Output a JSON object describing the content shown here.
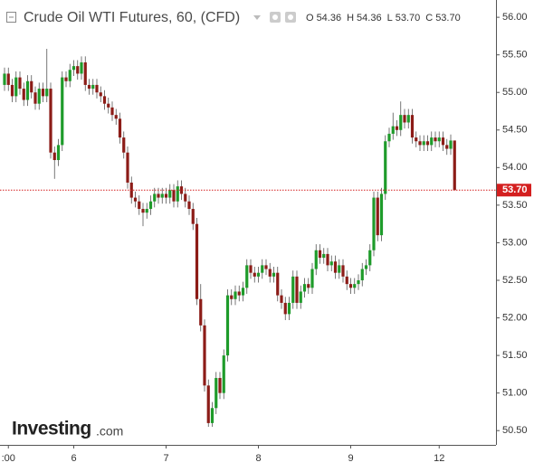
{
  "chart_data": {
    "type": "candlestick",
    "title": "Crude Oil WTI Futures, 60, (CFD)",
    "ohlc": [
      {
        "label": "O",
        "value": "54.36"
      },
      {
        "label": "H",
        "value": "54.36"
      },
      {
        "label": "L",
        "value": "53.70"
      },
      {
        "label": "C",
        "value": "53.70"
      }
    ],
    "watermark": [
      "Investing",
      ".com"
    ],
    "last_price": {
      "value": 53.7,
      "label": "53.70"
    },
    "up_color": "#1e9b2a",
    "down_color": "#8c1c17",
    "price_line_color": "#d41f1f",
    "categories": [
      null,
      ":00",
      null,
      null,
      null,
      null,
      null,
      null,
      null,
      null,
      null,
      null,
      null,
      null,
      null,
      null,
      null,
      null,
      "6",
      null,
      null,
      null,
      null,
      null,
      null,
      null,
      null,
      null,
      null,
      null,
      null,
      null,
      null,
      null,
      null,
      null,
      null,
      null,
      null,
      null,
      null,
      null,
      "7",
      null,
      null,
      null,
      null,
      null,
      null,
      null,
      null,
      null,
      null,
      null,
      null,
      null,
      null,
      null,
      null,
      null,
      null,
      null,
      null,
      null,
      null,
      null,
      "8",
      null,
      null,
      null,
      null,
      null,
      null,
      null,
      null,
      null,
      null,
      null,
      null,
      null,
      null,
      null,
      null,
      null,
      null,
      null,
      null,
      null,
      null,
      null,
      "9",
      null,
      null,
      null,
      null,
      null,
      null,
      null,
      null,
      null,
      null,
      null,
      null,
      null,
      null,
      null,
      null,
      null,
      null,
      null,
      null,
      null,
      null,
      "12",
      null,
      null,
      null,
      null
    ],
    "open": [
      55.1,
      55.25,
      55.1,
      54.95,
      55.2,
      55.05,
      54.9,
      55.15,
      55.0,
      54.85,
      55.05,
      54.95,
      55.05,
      54.2,
      54.1,
      54.3,
      55.2,
      55.15,
      55.3,
      55.35,
      55.25,
      55.4,
      55.1,
      55.05,
      55.1,
      55.0,
      54.95,
      54.85,
      54.8,
      54.7,
      54.65,
      54.4,
      54.2,
      53.8,
      53.6,
      53.55,
      53.45,
      53.4,
      53.45,
      53.55,
      53.65,
      53.6,
      53.65,
      53.6,
      53.7,
      53.55,
      53.75,
      53.65,
      53.55,
      53.45,
      53.25,
      52.25,
      51.9,
      51.1,
      50.6,
      50.8,
      51.2,
      51.0,
      51.5,
      52.3,
      52.25,
      52.35,
      52.3,
      52.4,
      52.7,
      52.6,
      52.55,
      52.6,
      52.7,
      52.65,
      52.55,
      52.6,
      52.3,
      52.2,
      52.05,
      52.2,
      52.55,
      52.2,
      52.35,
      52.45,
      52.4,
      52.65,
      52.9,
      52.8,
      52.85,
      52.7,
      52.75,
      52.6,
      52.7,
      52.55,
      52.45,
      52.4,
      52.45,
      52.5,
      52.65,
      52.7,
      52.9,
      53.6,
      53.1,
      53.65,
      54.35,
      54.45,
      54.55,
      54.5,
      54.7,
      54.6,
      54.7,
      54.4,
      54.35,
      54.3,
      54.35,
      54.3,
      54.4,
      54.35,
      54.4,
      54.3,
      54.25,
      54.36
    ],
    "high": [
      55.33,
      55.33,
      55.18,
      55.28,
      55.28,
      55.13,
      55.23,
      55.23,
      55.08,
      55.13,
      55.13,
      55.58,
      55.13,
      54.28,
      54.38,
      55.28,
      55.28,
      55.38,
      55.43,
      55.43,
      55.48,
      55.48,
      55.18,
      55.18,
      55.18,
      55.08,
      55.03,
      54.93,
      54.88,
      54.78,
      54.73,
      54.48,
      54.28,
      53.88,
      53.68,
      53.63,
      53.53,
      53.53,
      53.63,
      53.73,
      53.73,
      53.73,
      53.73,
      53.78,
      53.78,
      53.83,
      53.83,
      53.73,
      53.63,
      53.53,
      53.33,
      52.45,
      51.98,
      51.18,
      50.88,
      51.28,
      51.28,
      51.58,
      52.38,
      52.38,
      52.43,
      52.43,
      52.48,
      52.78,
      52.78,
      52.68,
      52.68,
      52.78,
      52.78,
      52.73,
      52.68,
      52.68,
      52.38,
      52.28,
      52.28,
      52.63,
      52.63,
      52.43,
      52.53,
      52.53,
      52.73,
      52.98,
      52.98,
      52.93,
      52.93,
      52.83,
      52.83,
      52.78,
      52.78,
      52.63,
      52.53,
      52.53,
      52.58,
      52.73,
      52.78,
      52.98,
      53.68,
      53.68,
      53.73,
      54.43,
      54.53,
      54.73,
      54.63,
      54.88,
      54.78,
      54.78,
      54.78,
      54.48,
      54.43,
      54.43,
      54.43,
      54.48,
      54.48,
      54.48,
      54.48,
      54.38,
      54.44,
      54.36
    ],
    "low": [
      55.02,
      55.02,
      54.87,
      54.87,
      54.97,
      54.82,
      54.82,
      54.92,
      54.77,
      54.77,
      54.87,
      54.87,
      54.12,
      53.85,
      54.02,
      54.22,
      55.07,
      55.07,
      55.22,
      55.17,
      55.17,
      55.02,
      54.97,
      54.97,
      54.92,
      54.87,
      54.77,
      54.72,
      54.62,
      54.57,
      54.32,
      54.12,
      53.72,
      53.52,
      53.47,
      53.37,
      53.22,
      53.32,
      53.37,
      53.47,
      53.52,
      53.52,
      53.52,
      53.52,
      53.47,
      53.47,
      53.57,
      53.47,
      53.37,
      53.17,
      52.17,
      51.82,
      51.02,
      50.55,
      50.55,
      50.72,
      50.92,
      50.92,
      51.42,
      52.17,
      52.17,
      52.22,
      52.22,
      52.32,
      52.52,
      52.47,
      52.47,
      52.52,
      52.57,
      52.47,
      52.47,
      52.22,
      52.12,
      51.97,
      51.97,
      52.12,
      52.12,
      52.12,
      52.27,
      52.32,
      52.32,
      52.57,
      52.72,
      52.72,
      52.62,
      52.62,
      52.52,
      52.52,
      52.47,
      52.37,
      52.32,
      52.32,
      52.37,
      52.42,
      52.57,
      52.62,
      52.82,
      53.02,
      53.02,
      53.57,
      54.27,
      54.37,
      54.42,
      54.42,
      54.52,
      54.52,
      54.32,
      54.27,
      54.22,
      54.22,
      54.22,
      54.22,
      54.27,
      54.27,
      54.22,
      54.17,
      54.17,
      53.7
    ],
    "close": [
      55.25,
      55.1,
      54.95,
      55.2,
      55.05,
      54.9,
      55.15,
      55.0,
      54.85,
      55.05,
      54.95,
      55.05,
      54.2,
      54.1,
      54.3,
      55.2,
      55.15,
      55.3,
      55.35,
      55.25,
      55.4,
      55.1,
      55.05,
      55.1,
      55.0,
      54.95,
      54.85,
      54.8,
      54.7,
      54.65,
      54.4,
      54.2,
      53.8,
      53.6,
      53.55,
      53.45,
      53.4,
      53.45,
      53.55,
      53.65,
      53.6,
      53.65,
      53.6,
      53.7,
      53.55,
      53.75,
      53.65,
      53.55,
      53.45,
      53.25,
      52.25,
      51.9,
      51.1,
      50.6,
      50.8,
      51.2,
      51.0,
      51.5,
      52.3,
      52.25,
      52.35,
      52.3,
      52.4,
      52.7,
      52.6,
      52.55,
      52.6,
      52.7,
      52.65,
      52.55,
      52.6,
      52.3,
      52.2,
      52.05,
      52.2,
      52.55,
      52.2,
      52.35,
      52.45,
      52.4,
      52.65,
      52.9,
      52.8,
      52.85,
      52.7,
      52.75,
      52.6,
      52.7,
      52.55,
      52.45,
      52.4,
      52.45,
      52.5,
      52.65,
      52.7,
      52.9,
      53.6,
      53.1,
      53.65,
      54.35,
      54.45,
      54.55,
      54.5,
      54.7,
      54.6,
      54.7,
      54.4,
      54.35,
      54.3,
      54.35,
      54.3,
      54.4,
      54.35,
      54.4,
      54.3,
      54.25,
      54.36,
      53.7
    ],
    "ylim": [
      50.31,
      56.23
    ],
    "yticks": [
      {
        "value": 50.5,
        "label": "50.50"
      },
      {
        "value": 51,
        "label": "51.00"
      },
      {
        "value": 51.5,
        "label": "51.50"
      },
      {
        "value": 52,
        "label": "52.00"
      },
      {
        "value": 52.5,
        "label": "52.50"
      },
      {
        "value": 53,
        "label": "53.00"
      },
      {
        "value": 53.5,
        "label": "53.50"
      },
      {
        "value": 54,
        "label": "54.00"
      },
      {
        "value": 54.5,
        "label": "54.50"
      },
      {
        "value": 55,
        "label": "55.00"
      },
      {
        "value": 55.5,
        "label": "55.50"
      },
      {
        "value": 56,
        "label": "56.00"
      }
    ],
    "grid": false
  }
}
